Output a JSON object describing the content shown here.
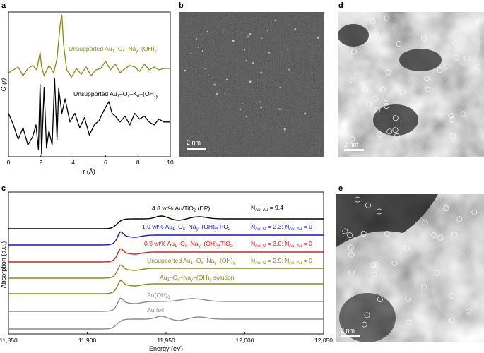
{
  "panels": {
    "a": "a",
    "b": "b",
    "c": "c",
    "d": "d",
    "e": "e"
  },
  "colors": {
    "olive": "#8a8a12",
    "black": "#000000",
    "blue": "#1414d2",
    "red": "#e01a1a",
    "gray": "#8c8c8c"
  },
  "images": {
    "b": {
      "scale_bar": "2 nm",
      "description_colors": [
        "#1c1c1c"
      ]
    },
    "d": {
      "scale_bar": "2 nm"
    },
    "e": {
      "scale_bar": "2 nm"
    }
  },
  "chart_data": [
    {
      "type": "line",
      "panel": "a",
      "ylabel": "G (r)",
      "xlabel": "r (Å)",
      "xlim": [
        0,
        10
      ],
      "xticks": [
        "0",
        "2",
        "4",
        "6",
        "8",
        "10"
      ],
      "series": [
        {
          "name": "Unsupported Au1–Ox–Nay–(OH)y",
          "color": "#8a8a12",
          "x": [
            0.0,
            0.3,
            0.6,
            0.9,
            1.2,
            1.5,
            1.75,
            1.95,
            2.05,
            2.2,
            2.5,
            2.8,
            3.0,
            3.2,
            3.3,
            3.4,
            3.6,
            3.9,
            4.2,
            4.5,
            4.8,
            5.1,
            5.4,
            5.7,
            6.0,
            6.3,
            6.6,
            6.9,
            7.2,
            7.5,
            7.8,
            8.1,
            8.4,
            8.7,
            9.0,
            9.3,
            9.6,
            10.0
          ],
          "y": [
            0.58,
            0.6,
            0.62,
            0.56,
            0.61,
            0.63,
            0.6,
            0.72,
            0.62,
            0.56,
            0.63,
            0.58,
            0.68,
            0.92,
            0.98,
            0.78,
            0.6,
            0.55,
            0.61,
            0.57,
            0.62,
            0.56,
            0.6,
            0.61,
            0.66,
            0.6,
            0.64,
            0.58,
            0.61,
            0.63,
            0.62,
            0.59,
            0.64,
            0.6,
            0.62,
            0.6,
            0.61,
            0.61
          ]
        },
        {
          "name": "Unsupported Au1–Ox–K6–(OH)y",
          "color": "#000000",
          "x": [
            0.0,
            0.3,
            0.6,
            0.9,
            1.2,
            1.5,
            1.7,
            1.85,
            1.95,
            2.05,
            2.2,
            2.35,
            2.5,
            2.7,
            2.85,
            3.0,
            3.1,
            3.3,
            3.5,
            3.8,
            4.1,
            4.4,
            4.7,
            5.0,
            5.3,
            5.6,
            5.9,
            6.2,
            6.4,
            6.6,
            6.9,
            7.2,
            7.5,
            7.8,
            8.1,
            8.4,
            8.7,
            9.0,
            9.3,
            9.6,
            10.0
          ],
          "y": [
            0.3,
            0.22,
            0.12,
            0.2,
            0.08,
            0.14,
            0.22,
            0.05,
            0.5,
            0.02,
            0.48,
            0.06,
            0.18,
            0.08,
            0.54,
            0.12,
            0.47,
            0.3,
            0.4,
            0.24,
            0.3,
            0.2,
            0.27,
            0.15,
            0.22,
            0.25,
            0.32,
            0.38,
            0.3,
            0.28,
            0.24,
            0.28,
            0.22,
            0.3,
            0.26,
            0.28,
            0.24,
            0.22,
            0.26,
            0.24,
            0.24
          ]
        }
      ]
    },
    {
      "type": "line",
      "panel": "c",
      "ylabel": "Absorption (a.u.)",
      "xlabel": "Energy (eV)",
      "xlim": [
        11850,
        12050
      ],
      "xticks": [
        "11,850",
        "11,900",
        "11,950",
        "12,000",
        "12,050"
      ],
      "series": [
        {
          "name": "4.8 wt% Au/TiO2 (DP)",
          "color": "#000000",
          "offset": 6
        },
        {
          "name": "1.0 wt% Au1–Ox–Nay–(OH)y/TiO2",
          "color": "#1414d2",
          "offset": 5
        },
        {
          "name": "0.5 wt% Au1–Ox–Nay–(OH)y/TiO2",
          "color": "#e01a1a",
          "offset": 4
        },
        {
          "name": "Unsupported Au1–Ox–Nay–(OH)y",
          "color": "#8a8a12",
          "offset": 3
        },
        {
          "name": "Au1–Ox–Nay–(OH)y solution",
          "color": "#8a8a12",
          "offset": 2
        },
        {
          "name": "Au(OH)3",
          "color": "#8c8c8c",
          "offset": 1
        },
        {
          "name": "Au foil",
          "color": "#8c8c8c",
          "offset": 0
        }
      ],
      "annotations": [
        {
          "main": "N",
          "sub": "Au–Au",
          "text": " = 9.4",
          "color": "#000000"
        },
        {
          "main": "N",
          "sub": "Au–O",
          "text": " = 2.3; N",
          "sub2": "Au–Au",
          "text2": " = 0",
          "color": "#1414d2"
        },
        {
          "main": "N",
          "sub": "Au–O",
          "text": " = 3.0; N",
          "sub2": "Au–Au",
          "text2": " = 0",
          "color": "#e01a1a"
        },
        {
          "main": "N",
          "sub": "Au–O",
          "text": " = 2.9; N",
          "sub2": "Au–Au",
          "text2": " = 0",
          "color": "#8a8a12"
        }
      ]
    }
  ]
}
